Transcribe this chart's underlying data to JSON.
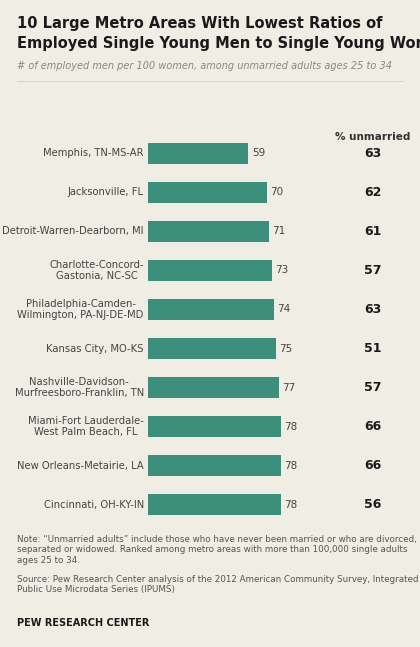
{
  "title_line1": "10 Large Metro Areas With Lowest Ratios of",
  "title_line2": "Employed Single Young Men to Single Young Women",
  "subtitle": "# of employed men per 100 women, among unmarried adults ages 25 to 34",
  "col_header": "% unmarried",
  "categories": [
    "Memphis, TN-MS-AR",
    "Jacksonville, FL",
    "Detroit-Warren-Dearborn, MI",
    "Charlotte-Concord-\nGastonia, NC-SC",
    "Philadelphia-Camden-\nWilmington, PA-NJ-DE-MD",
    "Kansas City, MO-KS",
    "Nashville-Davidson-\nMurfreesboro-Franklin, TN",
    "Miami-Fort Lauderdale-\nWest Palm Beach, FL",
    "New Orleans-Metairie, LA",
    "Cincinnati, OH-KY-IN"
  ],
  "values": [
    59,
    70,
    71,
    73,
    74,
    75,
    77,
    78,
    78,
    78
  ],
  "pct_unmarried": [
    63,
    62,
    61,
    57,
    63,
    51,
    57,
    66,
    66,
    56
  ],
  "bar_color": "#3d8f7c",
  "bg_color": "#f0ede4",
  "title_color": "#1a1a1a",
  "subtitle_color": "#888888",
  "label_color": "#444444",
  "value_color": "#444444",
  "pct_color": "#1a1a1a",
  "note_text": "Note: “Unmarried adults” include those who have never been married or who are divorced,\nseparated or widowed. Ranked among metro areas with more than 100,000 single adults\nages 25 to 34.",
  "source_text": "Source: Pew Research Center analysis of the 2012 American Community Survey, Integrated\nPublic Use Microdata Series (IPUMS)",
  "pew_label": "PEW RESEARCH CENTER"
}
